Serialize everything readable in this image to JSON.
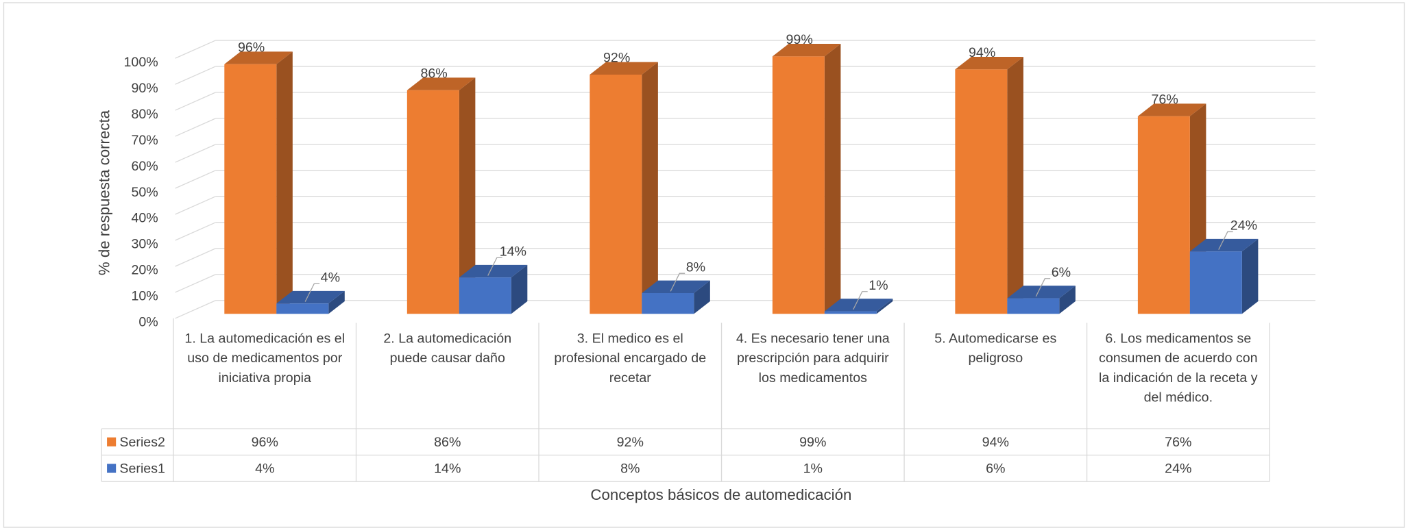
{
  "chart_data": {
    "type": "bar3d",
    "categories": [
      "1. La automedicación es el uso de medicamentos por iniciativa propia",
      "2. La automedicación puede causar daño",
      "3. El medico es el profesional encargado de recetar",
      "4. Es necesario tener una prescripción para adquirir los medicamentos",
      "5. Automedicarse es peligroso",
      "6. Los medicamentos se consumen de acuerdo con la indicación de la receta y del médico."
    ],
    "series": [
      {
        "name": "Series2",
        "color": "#ED7D31",
        "values": [
          96,
          86,
          92,
          99,
          94,
          76
        ],
        "value_labels": [
          "96%",
          "86%",
          "92%",
          "99%",
          "94%",
          "76%"
        ]
      },
      {
        "name": "Series1",
        "color": "#4472C4",
        "values": [
          4,
          14,
          8,
          1,
          6,
          24
        ],
        "value_labels": [
          "4%",
          "14%",
          "8%",
          "1%",
          "6%",
          "24%"
        ]
      }
    ],
    "ylim": [
      0,
      100
    ],
    "yticks": [
      {
        "value": 0,
        "label": "0%"
      },
      {
        "value": 10,
        "label": "10%"
      },
      {
        "value": 20,
        "label": "20%"
      },
      {
        "value": 30,
        "label": "30%"
      },
      {
        "value": 40,
        "label": "40%"
      },
      {
        "value": 50,
        "label": "50%"
      },
      {
        "value": 60,
        "label": "60%"
      },
      {
        "value": 70,
        "label": "70%"
      },
      {
        "value": 80,
        "label": "80%"
      },
      {
        "value": 90,
        "label": "90%"
      },
      {
        "value": 100,
        "label": "100%"
      }
    ],
    "y_label": "% de respuesta correcta",
    "x_label": "Conceptos básicos de automedicación",
    "grid": true
  }
}
